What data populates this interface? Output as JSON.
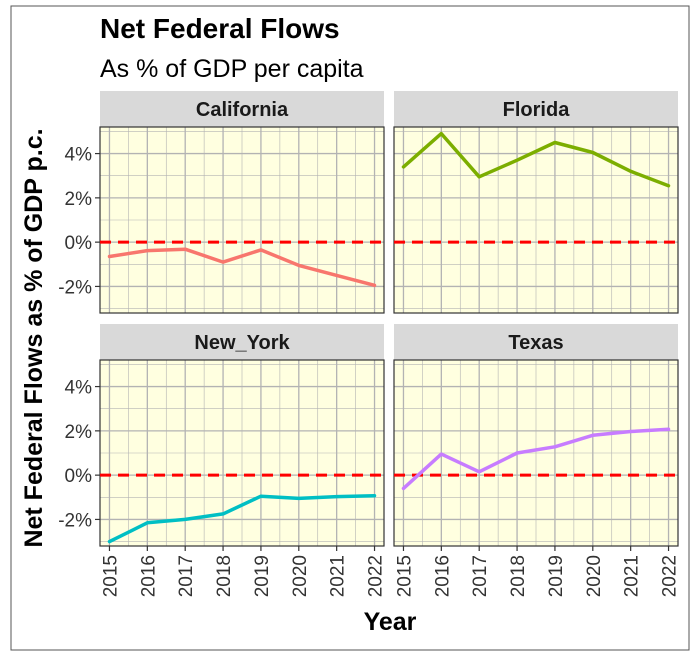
{
  "chart_data": {
    "type": "line",
    "title": "Net Federal Flows",
    "subtitle": "As % of GDP per capita",
    "xlabel": "Year",
    "ylabel": "Net Federal Flows as % of GDP p.c.",
    "x": [
      2015,
      2016,
      2017,
      2018,
      2019,
      2020,
      2021,
      2022
    ],
    "x_tick_labels": [
      "2015",
      "2016",
      "2017",
      "2018",
      "2019",
      "2020",
      "2021",
      "2022"
    ],
    "ylim": [
      -3.2,
      5.2
    ],
    "y_ticks": [
      -2,
      0,
      2,
      4
    ],
    "y_tick_labels": [
      "-2%",
      "0%",
      "2%",
      "4%"
    ],
    "reference_line": {
      "y": 0,
      "style": "dashed",
      "color": "#ff0000"
    },
    "panel_background": "#ffffe0",
    "strip_background": "#d9d9d9",
    "grid_color": "#b3b3b3",
    "facets": [
      {
        "label": "California",
        "color": "#f8766d",
        "values": [
          -0.65,
          -0.38,
          -0.32,
          -0.9,
          -0.35,
          -1.05,
          -1.5,
          -1.95
        ]
      },
      {
        "label": "Florida",
        "color": "#7cae00",
        "values": [
          3.4,
          4.9,
          2.95,
          3.7,
          4.5,
          4.05,
          3.2,
          2.55
        ]
      },
      {
        "label": "New_York",
        "color": "#00bfc4",
        "values": [
          -3.0,
          -2.15,
          -2.0,
          -1.75,
          -0.95,
          -1.05,
          -0.97,
          -0.93
        ]
      },
      {
        "label": "Texas",
        "color": "#c77cff",
        "values": [
          -0.6,
          0.95,
          0.15,
          1.0,
          1.28,
          1.8,
          1.97,
          2.07
        ]
      }
    ]
  }
}
